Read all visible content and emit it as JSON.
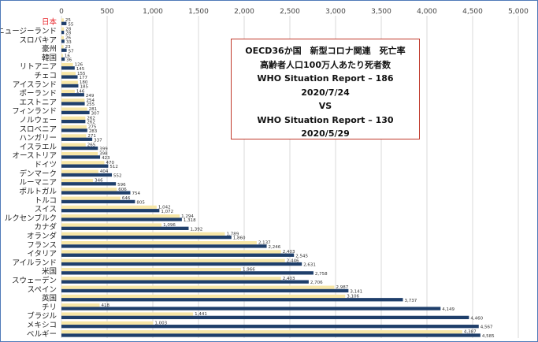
{
  "chart_data": {
    "type": "bar",
    "orientation": "horizontal",
    "title_lines": [
      "OECD36か国　新型コロナ関連　死亡率",
      "高齢者人口100万人あたり死者数",
      "WHO Situation Report – 186",
      "2020/7/24",
      "VS",
      "WHO Situation Report – 130",
      "2020/5/29"
    ],
    "xlim": [
      0,
      5000
    ],
    "x_ticks": [
      "0",
      "500",
      "1,000",
      "1,500",
      "2,000",
      "2,500",
      "3,000",
      "3,500",
      "4,000",
      "4,500",
      "5,000"
    ],
    "grid": true,
    "highlight_category": "日本",
    "highlight_color": "#e8262b",
    "categories": [
      "日本",
      "ニュージーランド",
      "スロバキア",
      "豪州",
      "韓国",
      "リトアニア",
      "チェコ",
      "アイスランド",
      "ポーランド",
      "エストニア",
      "フィンランド",
      "ノルウェー",
      "スロベニア",
      "ハンガリー",
      "イスラエル",
      "オーストリア",
      "ドイツ",
      "デンマーク",
      "ルーマニア",
      "ポルトガル",
      "トルコ",
      "スイス",
      "ルクセンブルク",
      "カナダ",
      "オランダ",
      "フランス",
      "イタリア",
      "アイルランド",
      "米国",
      "スウェーデン",
      "スペイン",
      "英国",
      "チリ",
      "ブラジル",
      "メキシコ",
      "ベルギー"
    ],
    "series": [
      {
        "color": "#f7e6a6",
        "values": [
          25,
          28,
          26,
          23,
          16,
          126,
          155,
          180,
          146,
          254,
          281,
          262,
          275,
          271,
          265,
          398,
          470,
          404,
          346,
          606,
          646,
          1042,
          1294,
          1096,
          1789,
          2137,
          2403,
          2446,
          1966,
          2403,
          2987,
          3106,
          418,
          1441,
          1003,
          4387
        ]
      },
      {
        "color": "#1f3f6b",
        "values": [
          55,
          28,
          33,
          57,
          36,
          145,
          177,
          185,
          249,
          255,
          307,
          262,
          283,
          337,
          399,
          423,
          512,
          552,
          596,
          754,
          805,
          1072,
          1318,
          1392,
          1860,
          2246,
          2545,
          2631,
          2758,
          2706,
          3141,
          3737,
          4149,
          4460,
          4567,
          4585
        ]
      }
    ],
    "yellow_labels": [
      "25",
      "28",
      "26",
      "23",
      "16",
      "126",
      "155",
      "180",
      "146",
      "254",
      "281",
      "262",
      "275",
      "271",
      "265",
      "398",
      "470",
      "404",
      "346",
      "606",
      "646",
      "1,042",
      "1,294",
      "1,096",
      "1,789",
      "2,137",
      "2,403",
      "2,446",
      "1,966",
      "2,403",
      "2,987",
      "3,106",
      "418",
      "1,441",
      "1,003",
      "4,387"
    ],
    "blue_labels": [
      "55",
      "28",
      "33",
      "57",
      "36",
      "145",
      "177",
      "185",
      "249",
      "255",
      "307",
      "262",
      "283",
      "337",
      "399",
      "423",
      "512",
      "552",
      "596",
      "754",
      "805",
      "1,072",
      "1,318",
      "1,392",
      "1,860",
      "2,246",
      "2,545",
      "2,631",
      "2,758",
      "2,706",
      "3,141",
      "3,737",
      "4,149",
      "4,460",
      "4,567",
      "4,585"
    ]
  }
}
